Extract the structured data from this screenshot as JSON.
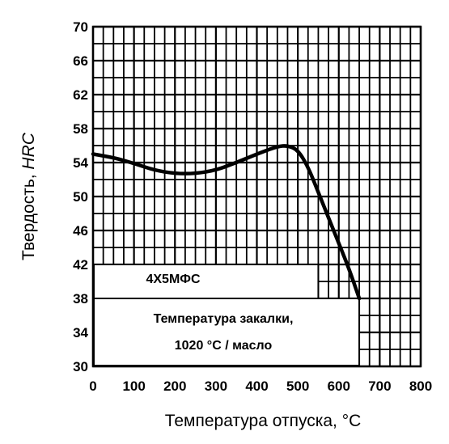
{
  "chart_data": {
    "type": "line",
    "title": "",
    "xlabel": "Температура отпуска, °С",
    "ylabel": "Твердость, HRC",
    "ylabel_parts": [
      "Твердость, ",
      "HRC"
    ],
    "xlim": [
      0,
      800
    ],
    "ylim": [
      30,
      70
    ],
    "x_ticks": [
      0,
      100,
      200,
      300,
      400,
      500,
      600,
      700,
      800
    ],
    "y_ticks": [
      30,
      34,
      38,
      42,
      46,
      50,
      54,
      58,
      62,
      66,
      70
    ],
    "grid": true,
    "series": [
      {
        "values": [
          {
            "x": 0,
            "y": 55.0
          },
          {
            "x": 50,
            "y": 54.6
          },
          {
            "x": 100,
            "y": 53.9
          },
          {
            "x": 150,
            "y": 53.1
          },
          {
            "x": 200,
            "y": 52.7
          },
          {
            "x": 250,
            "y": 52.7
          },
          {
            "x": 300,
            "y": 53.1
          },
          {
            "x": 350,
            "y": 54.0
          },
          {
            "x": 400,
            "y": 55.0
          },
          {
            "x": 450,
            "y": 55.9
          },
          {
            "x": 475,
            "y": 56.0
          },
          {
            "x": 500,
            "y": 55.5
          },
          {
            "x": 525,
            "y": 53.5
          },
          {
            "x": 550,
            "y": 50.5
          },
          {
            "x": 575,
            "y": 47.5
          },
          {
            "x": 600,
            "y": 44.5
          },
          {
            "x": 625,
            "y": 41.5
          },
          {
            "x": 650,
            "y": 38.0
          }
        ]
      }
    ],
    "annotations": {
      "steel_grade": "4Х5МФС",
      "quench_line1": "Температура закалки,",
      "quench_line2": "1020 °С / масло"
    }
  }
}
